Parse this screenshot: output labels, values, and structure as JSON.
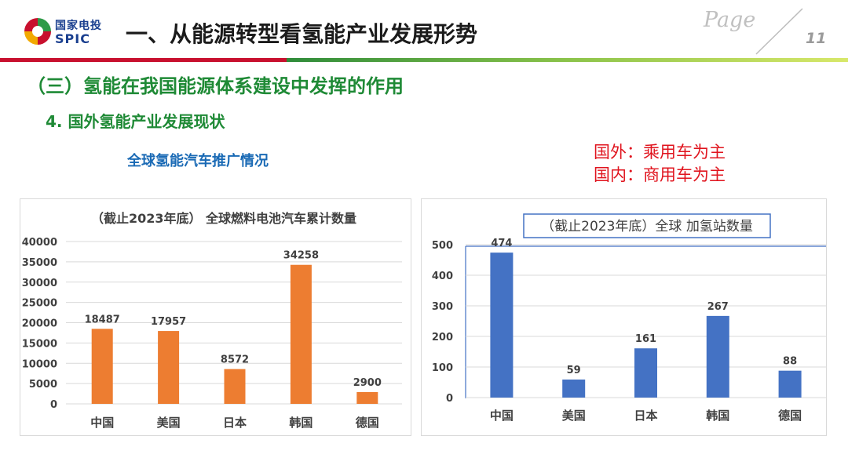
{
  "header": {
    "logo_cn": "国家电投",
    "logo_en": "SPIC",
    "title": "一、从能源转型看氢能产业发展形势",
    "page_word": "Page",
    "page_number": "11"
  },
  "section_title": "（三）氢能在我国能源体系建设中发挥的作用",
  "sub_title": "4. 国外氢能产业发展现状",
  "caption": "全球氢能汽车推广情况",
  "notes": [
    "国外：乘用车为主",
    "国内：商用车为主"
  ],
  "colors": {
    "red": "#c8102e",
    "green": "#1f8a36",
    "orange": "#ed7d31",
    "blue": "#4472c4",
    "note_red": "#e0141e"
  },
  "chart_data": [
    {
      "type": "bar",
      "title": "（截止2023年底） 全球燃料电池汽车累计数量",
      "categories": [
        "中国",
        "美国",
        "日本",
        "韩国",
        "德国"
      ],
      "values": [
        18487,
        17957,
        8572,
        34258,
        2900
      ],
      "ylim": [
        0,
        40000
      ],
      "yticks": [
        0,
        5000,
        10000,
        15000,
        20000,
        25000,
        30000,
        35000,
        40000
      ],
      "grid": true,
      "color": "#ed7d31"
    },
    {
      "type": "bar",
      "title": "（截止2023年底）全球 加氢站数量",
      "categories": [
        "中国",
        "美国",
        "日本",
        "韩国",
        "德国"
      ],
      "values": [
        474,
        59,
        161,
        267,
        88
      ],
      "ylim": [
        0,
        500
      ],
      "yticks": [
        0,
        100,
        200,
        300,
        400,
        500
      ],
      "grid": true,
      "color": "#4472c4"
    }
  ]
}
